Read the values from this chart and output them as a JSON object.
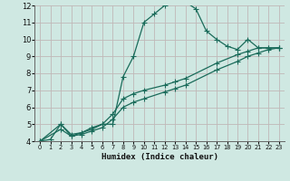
{
  "xlabel": "Humidex (Indice chaleur)",
  "xlim": [
    -0.5,
    23.5
  ],
  "ylim": [
    4,
    12
  ],
  "xticks": [
    0,
    1,
    2,
    3,
    4,
    5,
    6,
    7,
    8,
    9,
    10,
    11,
    12,
    13,
    14,
    15,
    16,
    17,
    18,
    19,
    20,
    21,
    22,
    23
  ],
  "yticks": [
    4,
    5,
    6,
    7,
    8,
    9,
    10,
    11,
    12
  ],
  "bg_color": "#cfe8e2",
  "line_color": "#1a6b5a",
  "grid_color": "#c0b8b8",
  "line1_x": [
    0,
    1,
    2,
    3,
    4,
    5,
    6,
    7,
    8,
    9,
    10,
    11,
    12,
    13,
    14,
    15,
    16,
    17,
    18,
    19,
    20,
    21,
    22,
    23
  ],
  "line1_y": [
    4.0,
    4.1,
    5.0,
    4.3,
    4.5,
    4.8,
    5.0,
    5.0,
    7.8,
    9.0,
    11.0,
    11.5,
    12.0,
    12.2,
    12.2,
    11.8,
    10.5,
    10.0,
    9.6,
    9.4,
    10.0,
    9.5,
    9.5,
    9.5
  ],
  "line2_x": [
    0,
    2,
    3,
    4,
    5,
    6,
    7,
    8,
    9,
    10,
    12,
    13,
    14,
    17,
    19,
    20,
    21,
    22,
    23
  ],
  "line2_y": [
    4.0,
    5.0,
    4.4,
    4.5,
    4.7,
    5.0,
    5.6,
    6.5,
    6.8,
    7.0,
    7.3,
    7.5,
    7.7,
    8.6,
    9.1,
    9.3,
    9.5,
    9.5,
    9.5
  ],
  "line3_x": [
    0,
    2,
    3,
    4,
    5,
    6,
    7,
    8,
    9,
    10,
    12,
    13,
    14,
    17,
    19,
    20,
    21,
    22,
    23
  ],
  "line3_y": [
    4.0,
    4.7,
    4.3,
    4.4,
    4.6,
    4.8,
    5.3,
    6.0,
    6.3,
    6.5,
    6.9,
    7.1,
    7.3,
    8.2,
    8.7,
    9.0,
    9.2,
    9.4,
    9.5
  ]
}
